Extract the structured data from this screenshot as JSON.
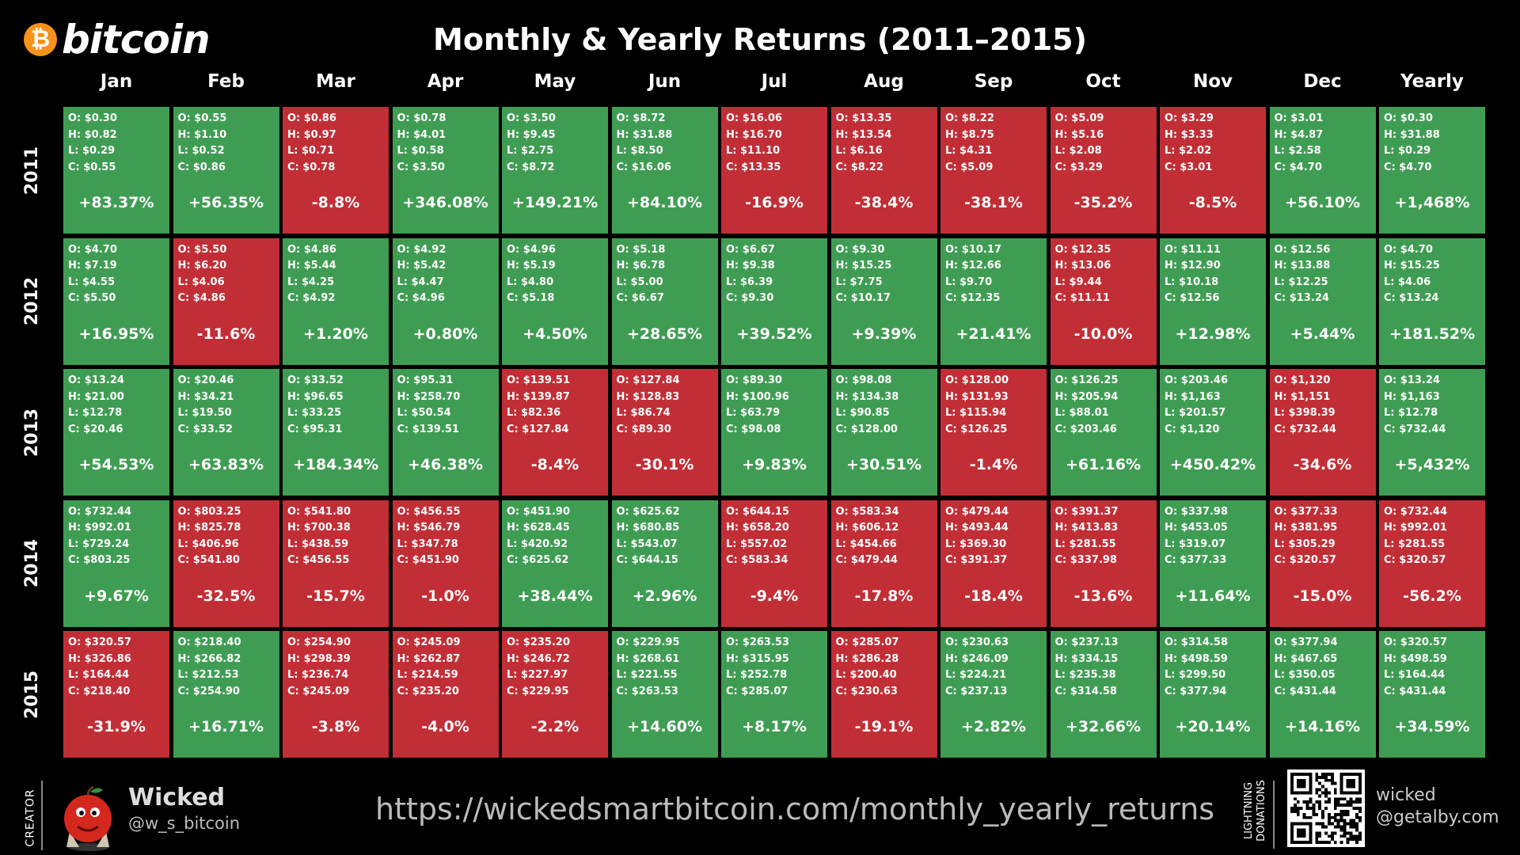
{
  "logo": {
    "symbol": "₿",
    "text": "bitcoin"
  },
  "chart_data": {
    "type": "table",
    "title": "Monthly & Yearly Returns (2011–2015)",
    "columns": [
      "Jan",
      "Feb",
      "Mar",
      "Apr",
      "May",
      "Jun",
      "Jul",
      "Aug",
      "Sep",
      "Oct",
      "Nov",
      "Dec",
      "Yearly"
    ],
    "rows": [
      {
        "year": "2011",
        "cells": [
          {
            "o": "$0.30",
            "h": "$0.82",
            "l": "$0.29",
            "c": "$0.55",
            "ret": "+83.37%",
            "dir": "up"
          },
          {
            "o": "$0.55",
            "h": "$1.10",
            "l": "$0.52",
            "c": "$0.86",
            "ret": "+56.35%",
            "dir": "up"
          },
          {
            "o": "$0.86",
            "h": "$0.97",
            "l": "$0.71",
            "c": "$0.78",
            "ret": "-8.8%",
            "dir": "down"
          },
          {
            "o": "$0.78",
            "h": "$4.01",
            "l": "$0.58",
            "c": "$3.50",
            "ret": "+346.08%",
            "dir": "up"
          },
          {
            "o": "$3.50",
            "h": "$9.45",
            "l": "$2.75",
            "c": "$8.72",
            "ret": "+149.21%",
            "dir": "up"
          },
          {
            "o": "$8.72",
            "h": "$31.88",
            "l": "$8.50",
            "c": "$16.06",
            "ret": "+84.10%",
            "dir": "up"
          },
          {
            "o": "$16.06",
            "h": "$16.70",
            "l": "$11.10",
            "c": "$13.35",
            "ret": "-16.9%",
            "dir": "down"
          },
          {
            "o": "$13.35",
            "h": "$13.54",
            "l": "$6.16",
            "c": "$8.22",
            "ret": "-38.4%",
            "dir": "down"
          },
          {
            "o": "$8.22",
            "h": "$8.75",
            "l": "$4.31",
            "c": "$5.09",
            "ret": "-38.1%",
            "dir": "down"
          },
          {
            "o": "$5.09",
            "h": "$5.16",
            "l": "$2.08",
            "c": "$3.29",
            "ret": "-35.2%",
            "dir": "down"
          },
          {
            "o": "$3.29",
            "h": "$3.33",
            "l": "$2.02",
            "c": "$3.01",
            "ret": "-8.5%",
            "dir": "down"
          },
          {
            "o": "$3.01",
            "h": "$4.87",
            "l": "$2.58",
            "c": "$4.70",
            "ret": "+56.10%",
            "dir": "up"
          },
          {
            "o": "$0.30",
            "h": "$31.88",
            "l": "$0.29",
            "c": "$4.70",
            "ret": "+1,468%",
            "dir": "up"
          }
        ]
      },
      {
        "year": "2012",
        "cells": [
          {
            "o": "$4.70",
            "h": "$7.19",
            "l": "$4.55",
            "c": "$5.50",
            "ret": "+16.95%",
            "dir": "up"
          },
          {
            "o": "$5.50",
            "h": "$6.20",
            "l": "$4.06",
            "c": "$4.86",
            "ret": "-11.6%",
            "dir": "down"
          },
          {
            "o": "$4.86",
            "h": "$5.44",
            "l": "$4.25",
            "c": "$4.92",
            "ret": "+1.20%",
            "dir": "up"
          },
          {
            "o": "$4.92",
            "h": "$5.42",
            "l": "$4.47",
            "c": "$4.96",
            "ret": "+0.80%",
            "dir": "up"
          },
          {
            "o": "$4.96",
            "h": "$5.19",
            "l": "$4.80",
            "c": "$5.18",
            "ret": "+4.50%",
            "dir": "up"
          },
          {
            "o": "$5.18",
            "h": "$6.78",
            "l": "$5.00",
            "c": "$6.67",
            "ret": "+28.65%",
            "dir": "up"
          },
          {
            "o": "$6.67",
            "h": "$9.38",
            "l": "$6.39",
            "c": "$9.30",
            "ret": "+39.52%",
            "dir": "up"
          },
          {
            "o": "$9.30",
            "h": "$15.25",
            "l": "$7.75",
            "c": "$10.17",
            "ret": "+9.39%",
            "dir": "up"
          },
          {
            "o": "$10.17",
            "h": "$12.66",
            "l": "$9.70",
            "c": "$12.35",
            "ret": "+21.41%",
            "dir": "up"
          },
          {
            "o": "$12.35",
            "h": "$13.06",
            "l": "$9.44",
            "c": "$11.11",
            "ret": "-10.0%",
            "dir": "down"
          },
          {
            "o": "$11.11",
            "h": "$12.90",
            "l": "$10.18",
            "c": "$12.56",
            "ret": "+12.98%",
            "dir": "up"
          },
          {
            "o": "$12.56",
            "h": "$13.88",
            "l": "$12.25",
            "c": "$13.24",
            "ret": "+5.44%",
            "dir": "up"
          },
          {
            "o": "$4.70",
            "h": "$15.25",
            "l": "$4.06",
            "c": "$13.24",
            "ret": "+181.52%",
            "dir": "up"
          }
        ]
      },
      {
        "year": "2013",
        "cells": [
          {
            "o": "$13.24",
            "h": "$21.00",
            "l": "$12.78",
            "c": "$20.46",
            "ret": "+54.53%",
            "dir": "up"
          },
          {
            "o": "$20.46",
            "h": "$34.21",
            "l": "$19.50",
            "c": "$33.52",
            "ret": "+63.83%",
            "dir": "up"
          },
          {
            "o": "$33.52",
            "h": "$96.65",
            "l": "$33.25",
            "c": "$95.31",
            "ret": "+184.34%",
            "dir": "up"
          },
          {
            "o": "$95.31",
            "h": "$258.70",
            "l": "$50.54",
            "c": "$139.51",
            "ret": "+46.38%",
            "dir": "up"
          },
          {
            "o": "$139.51",
            "h": "$139.87",
            "l": "$82.36",
            "c": "$127.84",
            "ret": "-8.4%",
            "dir": "down"
          },
          {
            "o": "$127.84",
            "h": "$128.83",
            "l": "$86.74",
            "c": "$89.30",
            "ret": "-30.1%",
            "dir": "down"
          },
          {
            "o": "$89.30",
            "h": "$100.96",
            "l": "$63.79",
            "c": "$98.08",
            "ret": "+9.83%",
            "dir": "up"
          },
          {
            "o": "$98.08",
            "h": "$134.38",
            "l": "$90.85",
            "c": "$128.00",
            "ret": "+30.51%",
            "dir": "up"
          },
          {
            "o": "$128.00",
            "h": "$131.93",
            "l": "$115.94",
            "c": "$126.25",
            "ret": "-1.4%",
            "dir": "down"
          },
          {
            "o": "$126.25",
            "h": "$205.94",
            "l": "$88.01",
            "c": "$203.46",
            "ret": "+61.16%",
            "dir": "up"
          },
          {
            "o": "$203.46",
            "h": "$1,163",
            "l": "$201.57",
            "c": "$1,120",
            "ret": "+450.42%",
            "dir": "up"
          },
          {
            "o": "$1,120",
            "h": "$1,151",
            "l": "$398.39",
            "c": "$732.44",
            "ret": "-34.6%",
            "dir": "down"
          },
          {
            "o": "$13.24",
            "h": "$1,163",
            "l": "$12.78",
            "c": "$732.44",
            "ret": "+5,432%",
            "dir": "up"
          }
        ]
      },
      {
        "year": "2014",
        "cells": [
          {
            "o": "$732.44",
            "h": "$992.01",
            "l": "$729.24",
            "c": "$803.25",
            "ret": "+9.67%",
            "dir": "up"
          },
          {
            "o": "$803.25",
            "h": "$825.78",
            "l": "$406.96",
            "c": "$541.80",
            "ret": "-32.5%",
            "dir": "down"
          },
          {
            "o": "$541.80",
            "h": "$700.38",
            "l": "$438.59",
            "c": "$456.55",
            "ret": "-15.7%",
            "dir": "down"
          },
          {
            "o": "$456.55",
            "h": "$546.79",
            "l": "$347.78",
            "c": "$451.90",
            "ret": "-1.0%",
            "dir": "down"
          },
          {
            "o": "$451.90",
            "h": "$628.45",
            "l": "$420.92",
            "c": "$625.62",
            "ret": "+38.44%",
            "dir": "up"
          },
          {
            "o": "$625.62",
            "h": "$680.85",
            "l": "$543.07",
            "c": "$644.15",
            "ret": "+2.96%",
            "dir": "up"
          },
          {
            "o": "$644.15",
            "h": "$658.20",
            "l": "$557.02",
            "c": "$583.34",
            "ret": "-9.4%",
            "dir": "down"
          },
          {
            "o": "$583.34",
            "h": "$606.12",
            "l": "$454.66",
            "c": "$479.44",
            "ret": "-17.8%",
            "dir": "down"
          },
          {
            "o": "$479.44",
            "h": "$493.44",
            "l": "$369.30",
            "c": "$391.37",
            "ret": "-18.4%",
            "dir": "down"
          },
          {
            "o": "$391.37",
            "h": "$413.83",
            "l": "$281.55",
            "c": "$337.98",
            "ret": "-13.6%",
            "dir": "down"
          },
          {
            "o": "$337.98",
            "h": "$453.05",
            "l": "$319.07",
            "c": "$377.33",
            "ret": "+11.64%",
            "dir": "up"
          },
          {
            "o": "$377.33",
            "h": "$381.95",
            "l": "$305.29",
            "c": "$320.57",
            "ret": "-15.0%",
            "dir": "down"
          },
          {
            "o": "$732.44",
            "h": "$992.01",
            "l": "$281.55",
            "c": "$320.57",
            "ret": "-56.2%",
            "dir": "down"
          }
        ]
      },
      {
        "year": "2015",
        "cells": [
          {
            "o": "$320.57",
            "h": "$326.86",
            "l": "$164.44",
            "c": "$218.40",
            "ret": "-31.9%",
            "dir": "down"
          },
          {
            "o": "$218.40",
            "h": "$266.82",
            "l": "$212.53",
            "c": "$254.90",
            "ret": "+16.71%",
            "dir": "up"
          },
          {
            "o": "$254.90",
            "h": "$298.39",
            "l": "$236.74",
            "c": "$245.09",
            "ret": "-3.8%",
            "dir": "down"
          },
          {
            "o": "$245.09",
            "h": "$262.87",
            "l": "$214.59",
            "c": "$235.20",
            "ret": "-4.0%",
            "dir": "down"
          },
          {
            "o": "$235.20",
            "h": "$246.72",
            "l": "$227.97",
            "c": "$229.95",
            "ret": "-2.2%",
            "dir": "down"
          },
          {
            "o": "$229.95",
            "h": "$268.61",
            "l": "$221.55",
            "c": "$263.53",
            "ret": "+14.60%",
            "dir": "up"
          },
          {
            "o": "$263.53",
            "h": "$315.95",
            "l": "$252.78",
            "c": "$285.07",
            "ret": "+8.17%",
            "dir": "up"
          },
          {
            "o": "$285.07",
            "h": "$286.28",
            "l": "$200.40",
            "c": "$230.63",
            "ret": "-19.1%",
            "dir": "down"
          },
          {
            "o": "$230.63",
            "h": "$246.09",
            "l": "$224.21",
            "c": "$237.13",
            "ret": "+2.82%",
            "dir": "up"
          },
          {
            "o": "$237.13",
            "h": "$334.15",
            "l": "$235.38",
            "c": "$314.58",
            "ret": "+32.66%",
            "dir": "up"
          },
          {
            "o": "$314.58",
            "h": "$498.59",
            "l": "$299.50",
            "c": "$377.94",
            "ret": "+20.14%",
            "dir": "up"
          },
          {
            "o": "$377.94",
            "h": "$467.65",
            "l": "$350.05",
            "c": "$431.44",
            "ret": "+14.16%",
            "dir": "up"
          },
          {
            "o": "$320.57",
            "h": "$498.59",
            "l": "$164.44",
            "c": "$431.44",
            "ret": "+34.59%",
            "dir": "up"
          }
        ]
      }
    ]
  },
  "colors": {
    "positive": "#3f9d53",
    "negative": "#c22e36",
    "background": "#000000",
    "bitcoin_orange": "#f7931a"
  },
  "labels": {
    "open": "O: ",
    "high": "H: ",
    "low": "L: ",
    "close": "C: "
  },
  "footer": {
    "creator_label": "CREATOR",
    "creator_name": "Wicked",
    "creator_handle": "@w_s_bitcoin",
    "url": "https://wickedsmartbitcoin.com/monthly_yearly_returns",
    "donations_line1": "LIGHTNING",
    "donations_line2": "DONATIONS",
    "donation_line1": "wicked",
    "donation_line2": "@getalby.com",
    "avatar_icon": "apple-character-icon",
    "qr_icon": "qr-code-icon"
  }
}
